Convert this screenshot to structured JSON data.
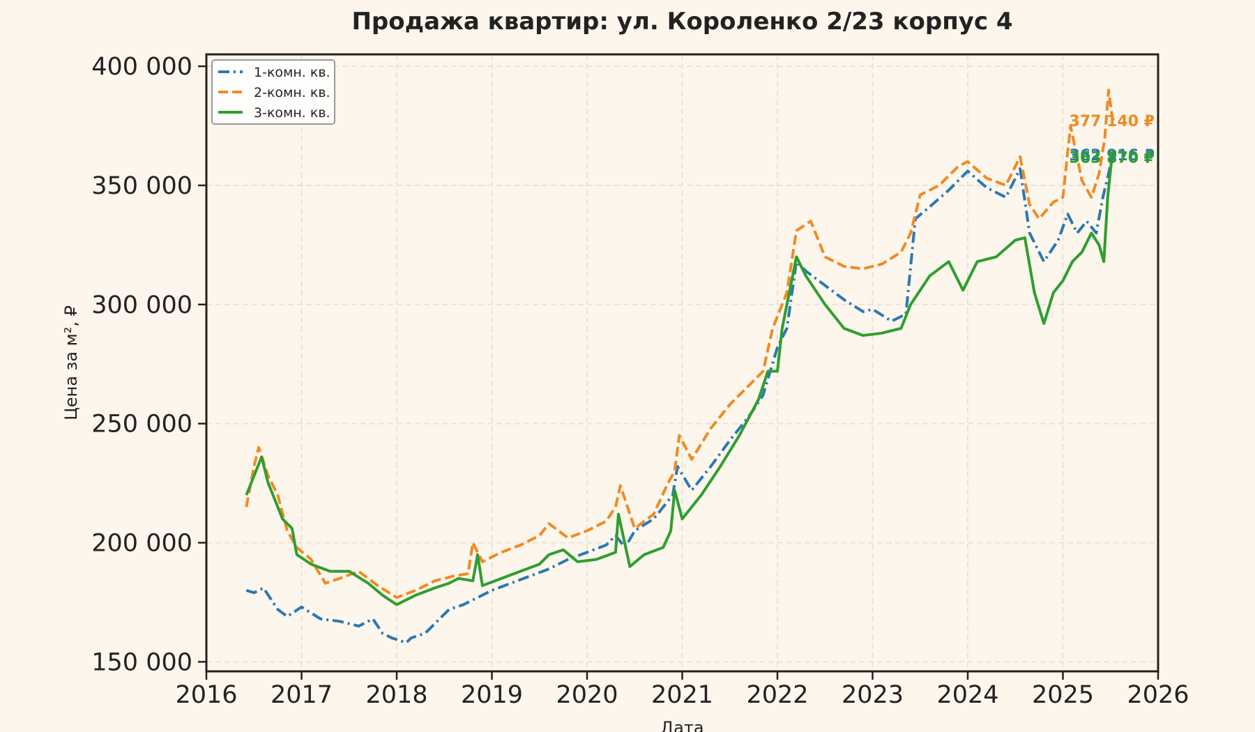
{
  "chart_data": {
    "type": "line",
    "title": "Продажа квартир: ул. Короленко 2/23 корпус 4",
    "xlabel": "Дата",
    "ylabel": "Цена за м², ₽",
    "xlim": [
      2016,
      2026
    ],
    "ylim": [
      146000,
      405000
    ],
    "x_ticks": [
      2016,
      2017,
      2018,
      2019,
      2020,
      2021,
      2022,
      2023,
      2024,
      2025,
      2026
    ],
    "x_tick_labels": [
      "2016",
      "2017",
      "2018",
      "2019",
      "2020",
      "2021",
      "2022",
      "2023",
      "2024",
      "2025",
      "2026"
    ],
    "y_ticks": [
      150000,
      200000,
      250000,
      300000,
      350000,
      400000
    ],
    "y_tick_labels": [
      "150 000",
      "200 000",
      "250 000",
      "300 000",
      "350 000",
      "400 000"
    ],
    "grid": true,
    "legend_position": "top-left",
    "series": [
      {
        "name": "1-комн. кв.",
        "color": "#2a78b5",
        "style": "dashdot",
        "end_label": "362 916 ₽",
        "x": [
          2016.42,
          2016.5,
          2016.6,
          2016.75,
          2016.85,
          2017.0,
          2017.2,
          2017.4,
          2017.6,
          2017.75,
          2017.85,
          2017.95,
          2018.1,
          2018.15,
          2018.3,
          2018.45,
          2018.55,
          2018.7,
          2018.8,
          2018.9,
          2019.0,
          2019.2,
          2019.4,
          2019.6,
          2019.8,
          2020.0,
          2020.2,
          2020.3,
          2020.4,
          2020.5,
          2020.7,
          2020.9,
          2020.95,
          2021.1,
          2021.3,
          2021.5,
          2021.7,
          2021.85,
          2022.0,
          2022.1,
          2022.2,
          2022.3,
          2022.5,
          2022.7,
          2022.9,
          2023.0,
          2023.2,
          2023.35,
          2023.45,
          2023.6,
          2023.8,
          2024.0,
          2024.2,
          2024.4,
          2024.55,
          2024.65,
          2024.8,
          2024.95,
          2025.05,
          2025.15,
          2025.25,
          2025.35,
          2025.42,
          2025.48,
          2025.52,
          2025.56
        ],
        "values": [
          180000,
          179000,
          181000,
          172000,
          169000,
          173000,
          168000,
          167000,
          165000,
          168000,
          162000,
          160000,
          158000,
          160000,
          162000,
          168000,
          172000,
          174000,
          176000,
          178000,
          180000,
          183000,
          186000,
          189000,
          193000,
          196000,
          199000,
          203000,
          198000,
          205000,
          210000,
          220000,
          232000,
          222000,
          232000,
          243000,
          253000,
          262000,
          282000,
          290000,
          318000,
          314000,
          308000,
          302000,
          297000,
          298000,
          293000,
          296000,
          336000,
          341000,
          348000,
          356000,
          349000,
          345000,
          357000,
          330000,
          318000,
          327000,
          338000,
          330000,
          335000,
          330000,
          345000,
          355000,
          362916,
          362916
        ]
      },
      {
        "name": "2-комн. кв.",
        "color": "#f08a24",
        "style": "dashed",
        "end_label": "377 140 ₽",
        "x": [
          2016.42,
          2016.5,
          2016.55,
          2016.65,
          2016.75,
          2016.85,
          2016.95,
          2017.1,
          2017.25,
          2017.4,
          2017.6,
          2017.8,
          2018.0,
          2018.2,
          2018.4,
          2018.6,
          2018.75,
          2018.8,
          2018.9,
          2019.1,
          2019.3,
          2019.5,
          2019.6,
          2019.8,
          2020.0,
          2020.2,
          2020.3,
          2020.35,
          2020.5,
          2020.7,
          2020.85,
          2020.92,
          2020.97,
          2021.1,
          2021.3,
          2021.5,
          2021.7,
          2021.85,
          2021.95,
          2022.1,
          2022.2,
          2022.35,
          2022.5,
          2022.7,
          2022.9,
          2023.1,
          2023.3,
          2023.4,
          2023.5,
          2023.7,
          2023.9,
          2024.0,
          2024.2,
          2024.4,
          2024.55,
          2024.65,
          2024.75,
          2024.9,
          2025.0,
          2025.08,
          2025.2,
          2025.3,
          2025.38,
          2025.44,
          2025.48,
          2025.52,
          2025.56
        ],
        "values": [
          215000,
          232000,
          240000,
          228000,
          220000,
          205000,
          198000,
          193000,
          183000,
          185000,
          188000,
          182000,
          177000,
          180000,
          184000,
          186000,
          187000,
          200000,
          192000,
          196000,
          199000,
          203000,
          208000,
          202000,
          205000,
          209000,
          215000,
          224000,
          206000,
          212000,
          225000,
          230000,
          245000,
          235000,
          248000,
          258000,
          266000,
          272000,
          290000,
          305000,
          331000,
          335000,
          320000,
          316000,
          315000,
          317000,
          322000,
          330000,
          346000,
          350000,
          358000,
          360000,
          353000,
          350000,
          362000,
          342000,
          336000,
          343000,
          345000,
          375000,
          352000,
          345000,
          355000,
          370000,
          390000,
          378000,
          377140
        ]
      },
      {
        "name": "3-комн. кв.",
        "color": "#2e9e2e",
        "style": "solid",
        "end_label": "363 870 ₽",
        "x": [
          2016.42,
          2016.5,
          2016.58,
          2016.65,
          2016.72,
          2016.8,
          2016.9,
          2016.95,
          2017.1,
          2017.3,
          2017.5,
          2017.7,
          2017.85,
          2018.0,
          2018.2,
          2018.4,
          2018.55,
          2018.65,
          2018.8,
          2018.85,
          2018.9,
          2019.1,
          2019.3,
          2019.5,
          2019.6,
          2019.75,
          2019.9,
          2020.1,
          2020.3,
          2020.33,
          2020.45,
          2020.6,
          2020.8,
          2020.88,
          2020.92,
          2021.0,
          2021.2,
          2021.4,
          2021.6,
          2021.8,
          2021.9,
          2022.0,
          2022.05,
          2022.2,
          2022.3,
          2022.5,
          2022.7,
          2022.9,
          2023.1,
          2023.3,
          2023.4,
          2023.6,
          2023.8,
          2023.95,
          2024.1,
          2024.3,
          2024.5,
          2024.6,
          2024.7,
          2024.8,
          2024.9,
          2025.0,
          2025.1,
          2025.2,
          2025.3,
          2025.38,
          2025.43,
          2025.47,
          2025.52,
          2025.56
        ],
        "values": [
          220000,
          228000,
          236000,
          225000,
          218000,
          210000,
          206000,
          195000,
          191000,
          188000,
          188000,
          183000,
          178000,
          174000,
          178000,
          181000,
          183000,
          185000,
          184000,
          195000,
          182000,
          185000,
          188000,
          191000,
          195000,
          197000,
          192000,
          193000,
          196000,
          212000,
          190000,
          195000,
          198000,
          205000,
          222000,
          210000,
          220000,
          232000,
          245000,
          260000,
          272000,
          272000,
          290000,
          320000,
          312000,
          300000,
          290000,
          287000,
          288000,
          290000,
          300000,
          312000,
          318000,
          306000,
          318000,
          320000,
          327000,
          328000,
          305000,
          292000,
          305000,
          310000,
          318000,
          322000,
          330000,
          325000,
          318000,
          345000,
          363870,
          363870
        ]
      }
    ]
  }
}
